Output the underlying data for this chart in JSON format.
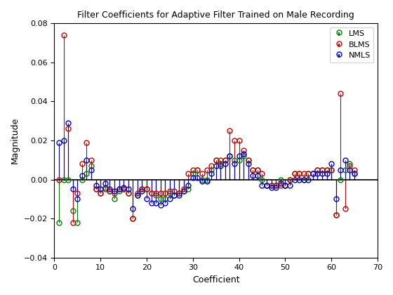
{
  "title": "Filter Coefficients for Adaptive Filter Trained on Male Recording",
  "xlabel": "Coefficient",
  "ylabel": "Magnitude",
  "xlim": [
    0,
    70
  ],
  "ylim": [
    -0.04,
    0.08
  ],
  "series": {
    "LMS": {
      "color": "#008000",
      "x": [
        1,
        2,
        3,
        4,
        5,
        6,
        7,
        8,
        9,
        10,
        11,
        12,
        13,
        14,
        15,
        16,
        17,
        18,
        19,
        20,
        21,
        22,
        23,
        24,
        25,
        26,
        27,
        28,
        29,
        30,
        31,
        32,
        33,
        34,
        35,
        36,
        37,
        38,
        39,
        40,
        41,
        42,
        43,
        44,
        45,
        46,
        47,
        48,
        49,
        50,
        51,
        52,
        53,
        54,
        55,
        56,
        57,
        58,
        59,
        60,
        61,
        62,
        63,
        64,
        65
      ],
      "y": [
        -0.022,
        0.0,
        0.0,
        -0.016,
        -0.022,
        0.0,
        0.003,
        0.007,
        -0.005,
        -0.007,
        -0.005,
        -0.006,
        -0.01,
        -0.006,
        -0.005,
        -0.007,
        -0.02,
        -0.008,
        -0.005,
        -0.005,
        -0.007,
        -0.008,
        -0.01,
        -0.01,
        -0.007,
        -0.008,
        -0.007,
        -0.006,
        -0.005,
        0.003,
        0.005,
        0.0,
        0.0,
        0.005,
        0.01,
        0.008,
        0.01,
        0.012,
        0.01,
        0.01,
        0.012,
        0.01,
        0.005,
        0.005,
        0.0,
        -0.003,
        -0.003,
        -0.003,
        0.0,
        -0.003,
        0.0,
        0.003,
        0.003,
        0.0,
        0.003,
        0.003,
        0.005,
        0.005,
        0.005,
        0.005,
        -0.018,
        0.0,
        0.005,
        0.008,
        0.003
      ]
    },
    "BLMS": {
      "color": "#cc0000",
      "x": [
        1,
        2,
        3,
        4,
        5,
        6,
        7,
        8,
        9,
        10,
        11,
        12,
        13,
        14,
        15,
        16,
        17,
        18,
        19,
        20,
        21,
        22,
        23,
        24,
        25,
        26,
        27,
        28,
        29,
        30,
        31,
        32,
        33,
        34,
        35,
        36,
        37,
        38,
        39,
        40,
        41,
        42,
        43,
        44,
        45,
        46,
        47,
        48,
        49,
        50,
        51,
        52,
        53,
        54,
        55,
        56,
        57,
        58,
        59,
        60,
        61,
        62,
        63,
        64,
        65
      ],
      "y": [
        0.0,
        0.074,
        0.026,
        -0.022,
        -0.007,
        0.008,
        0.019,
        0.01,
        -0.005,
        -0.007,
        -0.004,
        -0.006,
        -0.007,
        -0.005,
        -0.005,
        -0.007,
        -0.02,
        -0.007,
        -0.005,
        -0.005,
        -0.007,
        -0.007,
        -0.007,
        -0.007,
        -0.006,
        -0.006,
        -0.007,
        -0.005,
        0.003,
        0.005,
        0.005,
        0.003,
        0.005,
        0.007,
        0.01,
        0.01,
        0.01,
        0.025,
        0.02,
        0.02,
        0.015,
        0.01,
        0.005,
        0.005,
        0.003,
        -0.003,
        -0.003,
        -0.003,
        -0.003,
        -0.003,
        0.0,
        0.003,
        0.003,
        0.003,
        0.003,
        0.003,
        0.005,
        0.005,
        0.005,
        0.005,
        -0.018,
        0.044,
        -0.015,
        0.007,
        0.005
      ]
    },
    "NMLS": {
      "color": "#0000cc",
      "x": [
        1,
        2,
        3,
        4,
        5,
        6,
        7,
        8,
        9,
        10,
        11,
        12,
        13,
        14,
        15,
        16,
        17,
        18,
        19,
        20,
        21,
        22,
        23,
        24,
        25,
        26,
        27,
        28,
        29,
        30,
        31,
        32,
        33,
        34,
        35,
        36,
        37,
        38,
        39,
        40,
        41,
        42,
        43,
        44,
        45,
        46,
        47,
        48,
        49,
        50,
        51,
        52,
        53,
        54,
        55,
        56,
        57,
        58,
        59,
        60,
        61,
        62,
        63,
        64,
        65
      ],
      "y": [
        0.019,
        0.02,
        0.029,
        -0.005,
        -0.01,
        0.002,
        0.01,
        0.005,
        -0.003,
        -0.005,
        -0.002,
        -0.005,
        -0.006,
        -0.005,
        -0.004,
        -0.005,
        -0.015,
        -0.008,
        -0.006,
        -0.01,
        -0.012,
        -0.012,
        -0.013,
        -0.012,
        -0.01,
        -0.008,
        -0.008,
        -0.006,
        -0.003,
        0.001,
        0.001,
        -0.001,
        -0.001,
        0.003,
        0.007,
        0.007,
        0.008,
        0.012,
        0.008,
        0.012,
        0.013,
        0.008,
        0.002,
        0.002,
        -0.003,
        -0.003,
        -0.004,
        -0.004,
        -0.002,
        -0.003,
        -0.003,
        0.0,
        0.0,
        0.0,
        0.0,
        0.003,
        0.003,
        0.003,
        0.003,
        0.008,
        -0.01,
        0.005,
        0.01,
        0.005,
        0.003
      ]
    }
  },
  "xticks": [
    0,
    10,
    20,
    30,
    40,
    50,
    60,
    70
  ],
  "yticks": [
    -0.04,
    -0.02,
    0,
    0.02,
    0.04,
    0.06,
    0.08
  ],
  "legend_loc": "upper right",
  "series_order": [
    "LMS",
    "BLMS",
    "NMLS"
  ]
}
